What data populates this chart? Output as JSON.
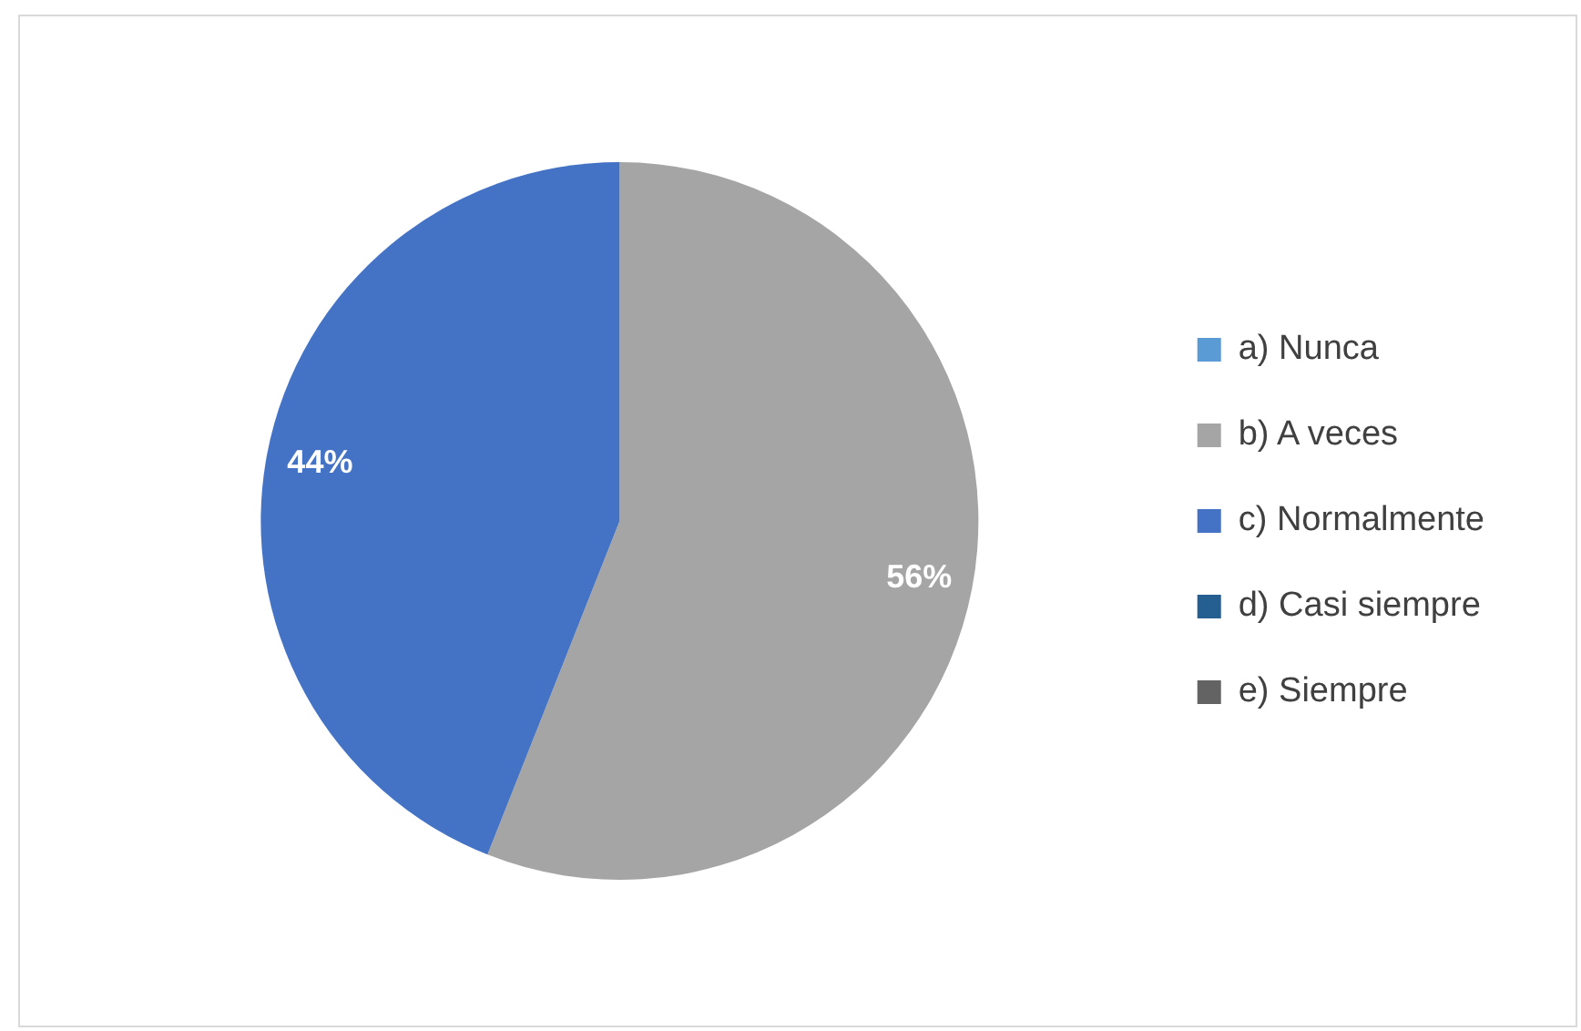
{
  "chart_data": {
    "type": "pie",
    "categories": [
      "a) Nunca",
      "b) A veces",
      "c) Normalmente",
      "d) Casi siempre",
      "e) Siempre"
    ],
    "values": [
      0,
      56,
      44,
      0,
      0
    ],
    "colors": [
      "#5b9bd5",
      "#a5a5a5",
      "#4472c4",
      "#255e91",
      "#636363"
    ],
    "value_labels": [
      null,
      "56%",
      "44%",
      null,
      null
    ],
    "legend": "right"
  }
}
